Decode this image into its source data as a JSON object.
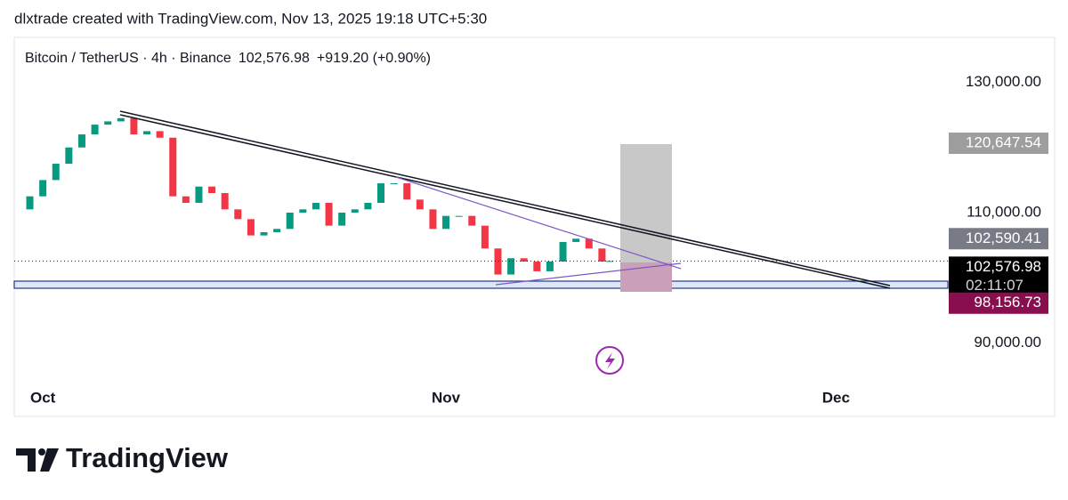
{
  "header": {
    "caption": "dlxtrade created with TradingView.com, Nov 13, 2025 19:18 UTC+5:30"
  },
  "chart_data": {
    "type": "candlestick",
    "title": "Bitcoin / TetherUS · 4h · Binance",
    "last_price": "102,576.98",
    "change": "+919.20 (+0.90%)",
    "x": [
      -2,
      -1,
      0,
      1,
      2,
      3,
      4,
      5,
      6,
      7,
      8,
      9,
      10,
      11,
      12,
      13,
      14,
      15,
      16,
      17,
      18,
      19,
      20,
      21,
      22,
      23,
      24,
      25,
      26,
      27,
      28,
      29,
      30,
      31,
      32,
      33,
      34,
      35,
      36,
      37,
      38,
      39,
      40,
      41,
      42,
      43,
      43.6
    ],
    "values": [
      110500,
      112500,
      115000,
      117500,
      120000,
      122000,
      123500,
      124000,
      124500,
      122000,
      122500,
      121500,
      112500,
      111500,
      114000,
      113000,
      110500,
      109000,
      106500,
      107000,
      107500,
      110000,
      110500,
      111500,
      108000,
      110000,
      110500,
      111500,
      114500,
      114500,
      112000,
      110500,
      107500,
      109500,
      109500,
      108000,
      104500,
      100500,
      103000,
      102500,
      101000,
      102500,
      105500,
      106000,
      104500,
      102500,
      102577
    ],
    "up_color": "#089981",
    "down_color": "#f23645",
    "xlim": [
      -2.2,
      69.6
    ],
    "xticks": [
      {
        "value": 0,
        "label": "Oct"
      },
      {
        "value": 31,
        "label": "Nov"
      },
      {
        "value": 61,
        "label": "Dec"
      }
    ],
    "ylim": [
      78740,
      136890
    ],
    "yticks": [
      {
        "value": 90000,
        "label": "90,000.00"
      },
      {
        "value": 110000,
        "label": "110,000.00"
      },
      {
        "value": 130000,
        "label": "130,000.00"
      }
    ],
    "price_tags": [
      {
        "value": 120647.54,
        "label": "120,647.54",
        "color": "#9e9e9e"
      },
      {
        "value": 102590.41,
        "label": "102,590.41",
        "color": "#787b86"
      },
      {
        "value": 102576.98,
        "label": "102,576.98",
        "color": "#000000"
      },
      {
        "value": 98156.73,
        "label": "98,156.73",
        "color": "#880e4f"
      }
    ],
    "countdown": "02:11:07"
  },
  "footer": {
    "brand": "TradingView"
  }
}
